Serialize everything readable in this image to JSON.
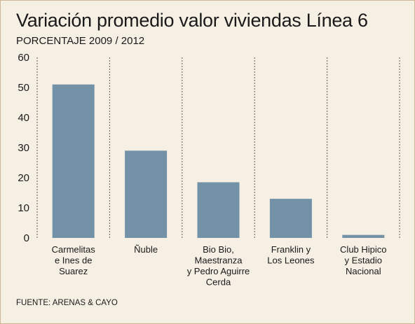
{
  "title": "Variación promedio valor viviendas Línea 6",
  "subtitle": "PORCENTAJE 2009 / 2012",
  "source": "FUENTE: ARENAS & CAYO",
  "colors": {
    "bar": "#7392a8",
    "background": "#f6efe4",
    "text": "#1a1a1a",
    "grid": "#6b5b45"
  },
  "chart_data": {
    "type": "bar",
    "title": "Variación promedio valor viviendas Línea 6",
    "subtitle": "PORCENTAJE 2009 / 2012",
    "xlabel": "",
    "ylabel": "",
    "ylim": [
      0,
      60
    ],
    "yticks": [
      "0",
      "10",
      "20",
      "30",
      "40",
      "50",
      "60"
    ],
    "categories": [
      [
        "Carmelitas",
        "e Ines de",
        "Suarez"
      ],
      [
        "Ñuble"
      ],
      [
        "Bio Bio,",
        "Maestranza",
        "y Pedro Aguirre",
        "Cerda"
      ],
      [
        "Franklin y",
        "Los Leones"
      ],
      [
        "Club Hipico",
        "y Estadio",
        "Nacional"
      ]
    ],
    "values": [
      51,
      29,
      18.5,
      13,
      1
    ],
    "grid": "vertical dotted separators"
  }
}
